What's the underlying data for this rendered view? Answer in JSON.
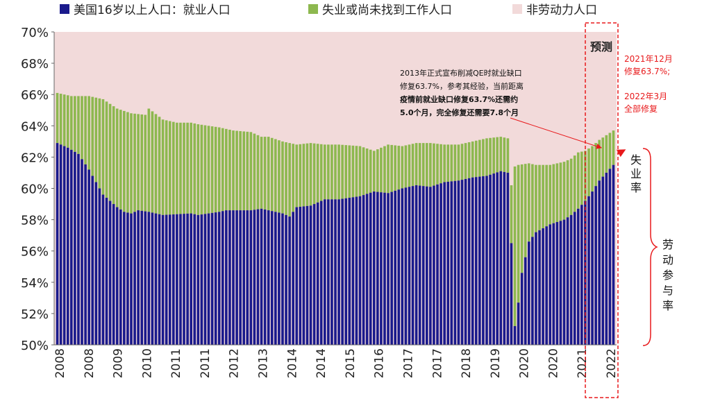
{
  "chart_data": {
    "type": "bar",
    "stacked": true,
    "ylim": [
      50,
      70
    ],
    "y_ticks": [
      "50%",
      "52%",
      "54%",
      "56%",
      "58%",
      "60%",
      "62%",
      "64%",
      "66%",
      "68%",
      "70%"
    ],
    "x_tick_labels": [
      "2008",
      "2008",
      "2009",
      "2010",
      "2011",
      "2011",
      "2012",
      "2013",
      "2014",
      "2014",
      "2015",
      "2016",
      "2017",
      "2017",
      "2018",
      "2019",
      "2020",
      "2020",
      "2021",
      "2022"
    ],
    "legend": {
      "position": "top",
      "employed_label": "美国16岁以上人口：就业人口",
      "unemployed_label": "失业或尚未找到工作人口",
      "nonlabor_label": "非劳动力人口"
    },
    "colors": {
      "employed": "#1a1a8c",
      "unemployed": "#8db84f",
      "nonlabor": "#f2dada",
      "annotation_red": "#e8191b"
    },
    "forecast_label": "预测",
    "annotation": {
      "line1": "2013年正式宣布削减QE时就业缺口",
      "line2": "修复63.7%，参考其经验，当前距离",
      "line3": "疫情前就业缺口修复63.7%还需约",
      "line4": "5.0个月，完全修复还需要7.8个月"
    },
    "red_notes": {
      "line1": "2021年12月",
      "line2": "修复63.7%;",
      "line3": "2022年3月",
      "line4": "全部修复"
    },
    "bracket_labels": {
      "unemployment_rate": "失业率",
      "participation_rate": "劳动参与率"
    },
    "keyframes_employed": [
      [
        0,
        62.9
      ],
      [
        3,
        62.6
      ],
      [
        6,
        62.2
      ],
      [
        9,
        61.2
      ],
      [
        13,
        59.6
      ],
      [
        17,
        58.8
      ],
      [
        19,
        58.5
      ],
      [
        21,
        58.4
      ],
      [
        23,
        58.6
      ],
      [
        26,
        58.5
      ],
      [
        30,
        58.3
      ],
      [
        38,
        58.4
      ],
      [
        40,
        58.3
      ],
      [
        46,
        58.5
      ],
      [
        48,
        58.6
      ],
      [
        55,
        58.6
      ],
      [
        58,
        58.7
      ],
      [
        64,
        58.4
      ],
      [
        66,
        58.2
      ],
      [
        68,
        58.8
      ],
      [
        72,
        58.9
      ],
      [
        76,
        59.3
      ],
      [
        80,
        59.3
      ],
      [
        86,
        59.5
      ],
      [
        90,
        59.8
      ],
      [
        94,
        59.7
      ],
      [
        98,
        60.0
      ],
      [
        102,
        60.2
      ],
      [
        106,
        60.1
      ],
      [
        110,
        60.4
      ],
      [
        114,
        60.5
      ],
      [
        118,
        60.7
      ],
      [
        122,
        60.8
      ],
      [
        126,
        61.1
      ],
      [
        128,
        61.0
      ],
      [
        129,
        56.5
      ],
      [
        130,
        51.2
      ],
      [
        131,
        52.7
      ],
      [
        132,
        54.6
      ],
      [
        134,
        56.6
      ],
      [
        136,
        57.2
      ],
      [
        140,
        57.7
      ],
      [
        144,
        58.0
      ],
      [
        146,
        58.3
      ],
      [
        148,
        58.7
      ],
      [
        150,
        59.2
      ],
      [
        152,
        59.8
      ],
      [
        154,
        60.5
      ],
      [
        156,
        61.0
      ],
      [
        158,
        61.5
      ]
    ],
    "keyframes_total": [
      [
        0,
        66.1
      ],
      [
        4,
        65.9
      ],
      [
        9,
        65.9
      ],
      [
        13,
        65.7
      ],
      [
        17,
        65.1
      ],
      [
        21,
        64.8
      ],
      [
        25,
        64.7
      ],
      [
        26,
        65.1
      ],
      [
        30,
        64.4
      ],
      [
        34,
        64.2
      ],
      [
        38,
        64.2
      ],
      [
        40,
        64.1
      ],
      [
        46,
        63.9
      ],
      [
        50,
        63.7
      ],
      [
        55,
        63.6
      ],
      [
        58,
        63.3
      ],
      [
        60,
        63.3
      ],
      [
        64,
        63.0
      ],
      [
        68,
        62.8
      ],
      [
        72,
        62.9
      ],
      [
        76,
        62.8
      ],
      [
        80,
        62.8
      ],
      [
        86,
        62.7
      ],
      [
        90,
        62.4
      ],
      [
        94,
        62.8
      ],
      [
        98,
        62.7
      ],
      [
        102,
        62.9
      ],
      [
        106,
        62.9
      ],
      [
        110,
        62.8
      ],
      [
        114,
        62.8
      ],
      [
        118,
        63.0
      ],
      [
        122,
        63.2
      ],
      [
        126,
        63.3
      ],
      [
        128,
        63.2
      ],
      [
        129,
        60.2
      ],
      [
        130,
        61.4
      ],
      [
        131,
        61.5
      ],
      [
        134,
        61.6
      ],
      [
        136,
        61.5
      ],
      [
        140,
        61.5
      ],
      [
        144,
        61.7
      ],
      [
        146,
        61.9
      ],
      [
        148,
        62.3
      ],
      [
        150,
        62.4
      ],
      [
        152,
        62.7
      ],
      [
        154,
        63.1
      ],
      [
        156,
        63.4
      ],
      [
        158,
        63.7
      ]
    ]
  }
}
